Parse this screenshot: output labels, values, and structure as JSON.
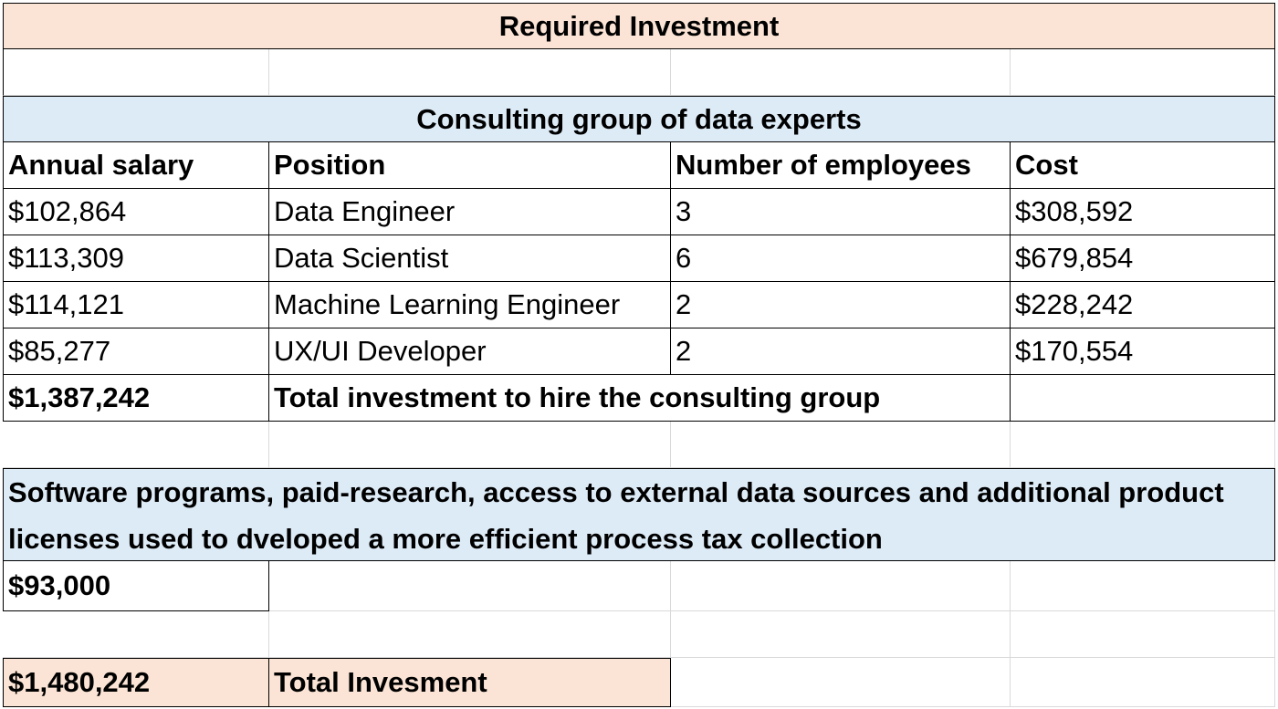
{
  "title": "Required Investment",
  "section1": {
    "heading": "Consulting group of data experts",
    "columns": [
      "Annual salary",
      "Position",
      "Number of employees",
      "Cost"
    ],
    "rows": [
      {
        "salary": "$102,864",
        "position": "Data Engineer",
        "employees": "3",
        "cost": "$308,592"
      },
      {
        "salary": "$113,309",
        "position": "Data Scientist",
        "employees": "6",
        "cost": "$679,854"
      },
      {
        "salary": "$114,121",
        "position": "Machine Learning Engineer",
        "employees": "2",
        "cost": "$228,242"
      },
      {
        "salary": "$85,277",
        "position": "UX/UI Developer",
        "employees": "2",
        "cost": "$170,554"
      }
    ],
    "total_value": "$1,387,242",
    "total_label": "Total investment to hire the consulting group"
  },
  "section2": {
    "heading": "Software programs, paid-research, access to external data sources and additional product licenses used to dveloped a more efficient process tax collection",
    "value": "$93,000"
  },
  "grand_total": {
    "value": "$1,480,242",
    "label": "Total Invesment"
  },
  "colors": {
    "peach": "#fbe4d5",
    "light_blue": "#ddebf7",
    "gridline": "#d9d9d9",
    "border": "#000000"
  }
}
